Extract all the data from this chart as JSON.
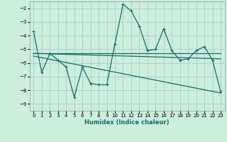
{
  "xlabel": "Humidex (Indice chaleur)",
  "background_color": "#cceedd",
  "grid_color": "#aacccc",
  "line_color": "#1a6b6b",
  "xlim": [
    -0.5,
    23.5
  ],
  "ylim": [
    -9.5,
    -1.5
  ],
  "yticks": [
    -9,
    -8,
    -7,
    -6,
    -5,
    -4,
    -3,
    -2
  ],
  "xticks": [
    0,
    1,
    2,
    3,
    4,
    5,
    6,
    7,
    8,
    9,
    10,
    11,
    12,
    13,
    14,
    15,
    16,
    17,
    18,
    19,
    20,
    21,
    22,
    23
  ],
  "line1_x": [
    0,
    1,
    2,
    3,
    4,
    5,
    6,
    7,
    8,
    9,
    10,
    11,
    12,
    13,
    14,
    15,
    16,
    17,
    18,
    19,
    20,
    21,
    22,
    23
  ],
  "line1_y": [
    -3.7,
    -6.7,
    -5.3,
    -5.8,
    -6.3,
    -8.5,
    -6.3,
    -7.5,
    -7.6,
    -7.6,
    -4.6,
    -1.7,
    -2.2,
    -3.3,
    -5.1,
    -5.0,
    -3.5,
    -5.1,
    -5.8,
    -5.7,
    -5.1,
    -4.8,
    -5.8,
    -8.1
  ],
  "line2_x": [
    0,
    23
  ],
  "line2_y": [
    -5.3,
    -5.7
  ],
  "line3_x": [
    0,
    23
  ],
  "line3_y": [
    -5.5,
    -8.2
  ],
  "line4_x": [
    0,
    23
  ],
  "line4_y": [
    -5.3,
    -5.3
  ]
}
